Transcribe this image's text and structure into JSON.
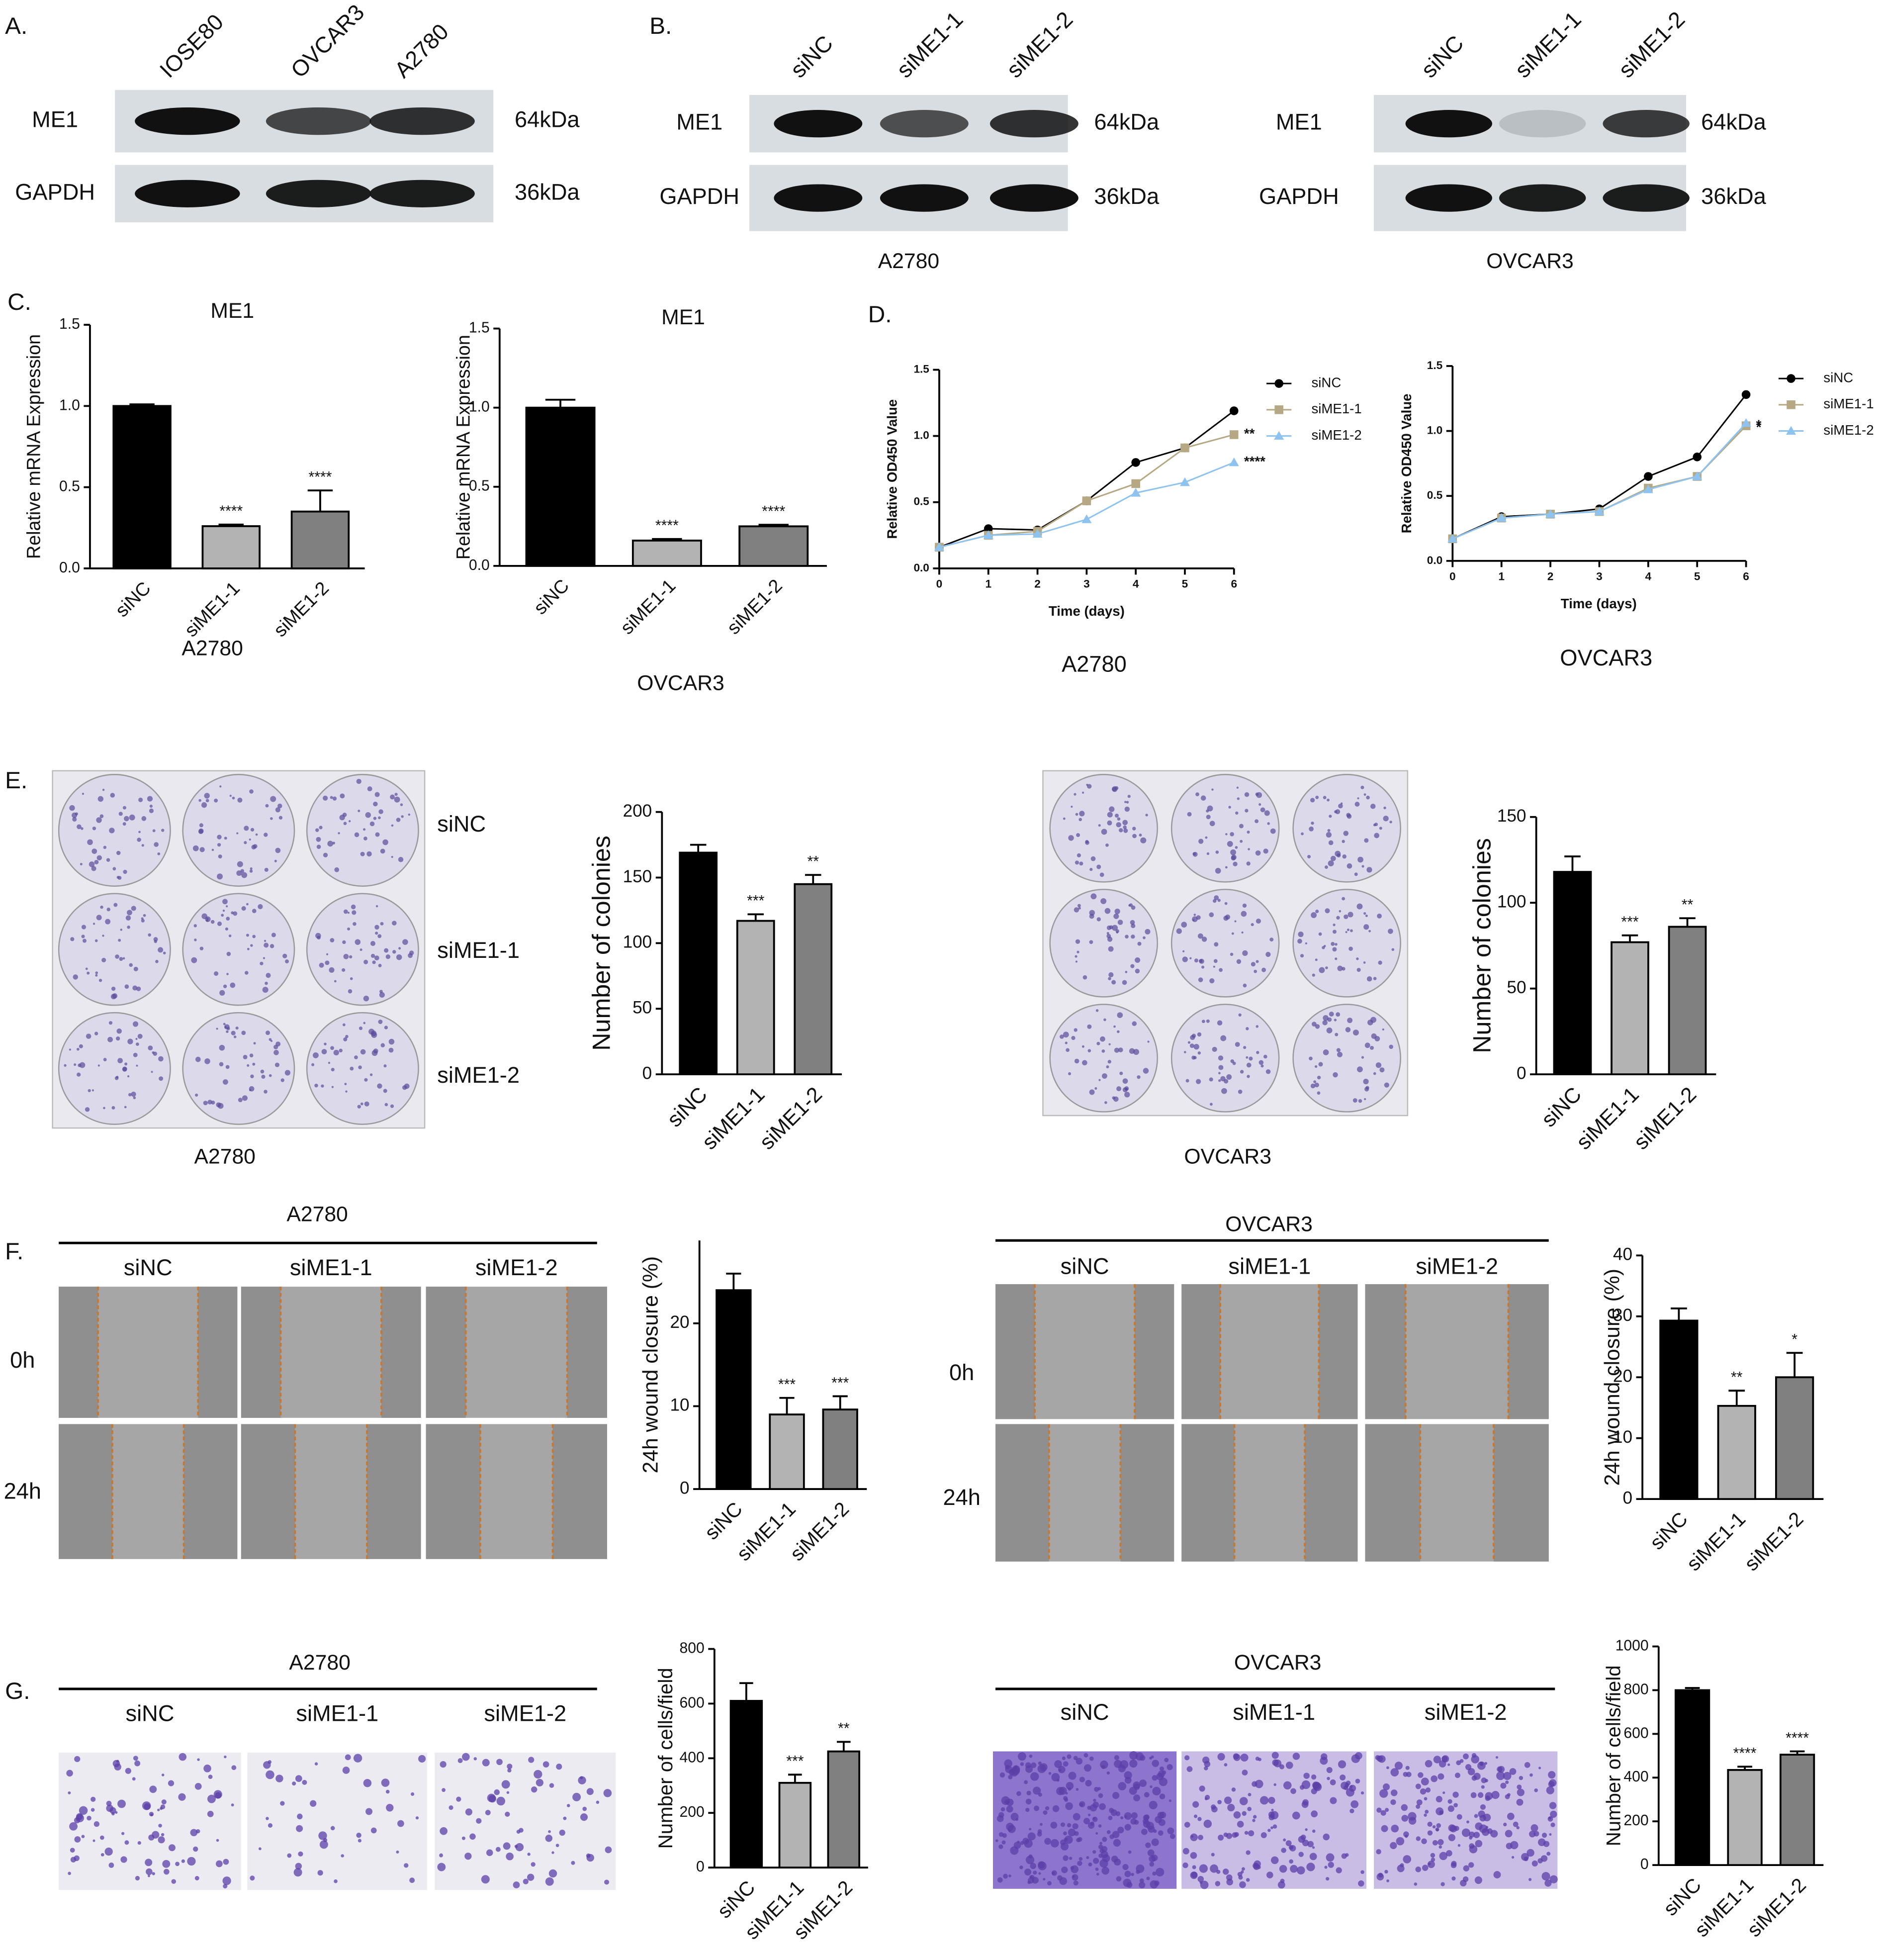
{
  "panel_labels": [
    "A.",
    "B.",
    "C.",
    "D.",
    "E.",
    "F.",
    "G."
  ],
  "blots": [
    {
      "lanes": [
        "IOSE80",
        "OVCAR3",
        "A2780"
      ],
      "rows": [
        {
          "protein": "ME1",
          "size": "64kDa"
        },
        {
          "protein": "GAPDH",
          "size": "36kDa"
        }
      ]
    },
    {
      "lanes": [
        "siNC",
        "siME1-1",
        "siME1-2"
      ],
      "rows": [
        {
          "protein": "ME1",
          "size": "64kDa"
        },
        {
          "protein": "GAPDH",
          "size": "36kDa"
        }
      ],
      "cell": "A2780"
    },
    {
      "lanes": [
        "siNC",
        "siME1-1",
        "siME1-2"
      ],
      "rows": [
        {
          "protein": "ME1",
          "size": "64kDa"
        },
        {
          "protein": "GAPDH",
          "size": "36kDa"
        }
      ],
      "cell": "OVCAR3"
    }
  ],
  "colony_plates": [
    {
      "rows": [
        "siNC",
        "siME1-1",
        "siME1-2"
      ],
      "cell": "A2780"
    },
    {
      "cell": "OVCAR3"
    }
  ],
  "wound_images": [
    {
      "title": "A2780",
      "columns": [
        "siNC",
        "siME1-1",
        "siME1-2"
      ],
      "rows": [
        "0h",
        "24h"
      ]
    },
    {
      "title": "OVCAR3",
      "columns": [
        "siNC",
        "siME1-1",
        "siME1-2"
      ],
      "rows": [
        "0h",
        "24h"
      ]
    }
  ],
  "transwell_images": [
    {
      "title": "A2780",
      "columns": [
        "siNC",
        "siME1-1",
        "siME1-2"
      ]
    },
    {
      "title": "OVCAR3",
      "columns": [
        "siNC",
        "siME1-1",
        "siME1-2"
      ]
    }
  ],
  "chart_data": [
    {
      "type": "bar",
      "title": "ME1",
      "x_label": "A2780",
      "y_label": "Relative mRNA Expression",
      "categories": [
        "siNC",
        "siME1-1",
        "siME1-2"
      ],
      "values": [
        1.0,
        0.26,
        0.35
      ],
      "errors": [
        0.01,
        0.01,
        0.13
      ],
      "significance": [
        null,
        "****",
        "****"
      ],
      "colors": [
        "#000000",
        "#b3b3b3",
        "#808080"
      ],
      "ylim": [
        0,
        1.5
      ],
      "yticks": [
        {
          "value": 0,
          "label": "0.0"
        },
        0.5,
        {
          "value": 1,
          "label": "1.0"
        },
        1.5
      ]
    },
    {
      "type": "bar",
      "title": "ME1",
      "x_label": "OVCAR3",
      "y_label": "Relative mRNA Expression",
      "categories": [
        "siNC",
        "siME1-1",
        "siME1-2"
      ],
      "values": [
        1.0,
        0.16,
        0.25
      ],
      "errors": [
        0.05,
        0.01,
        0.01
      ],
      "significance": [
        null,
        "****",
        "****"
      ],
      "colors": [
        "#000000",
        "#b3b3b3",
        "#808080"
      ],
      "ylim": [
        0,
        1.5
      ],
      "yticks": [
        {
          "value": 0,
          "label": "0.0"
        },
        0.5,
        {
          "value": 1,
          "label": "1.0"
        },
        1.5
      ]
    },
    {
      "type": "line",
      "caption": "A2780",
      "x_label": "Time (days)",
      "y_label": "Relative OD450 Value",
      "x": [
        0,
        1,
        2,
        3,
        4,
        5,
        6
      ],
      "xlim": [
        0,
        6
      ],
      "xticks": [
        0,
        1,
        2,
        3,
        4,
        5,
        6
      ],
      "ylim": [
        0,
        1.5
      ],
      "yticks": [
        {
          "value": 0,
          "label": "0.0"
        },
        0.5,
        {
          "value": 1,
          "label": "1.0"
        },
        1.5
      ],
      "legend": "upper-right",
      "series": [
        {
          "name": "siNC",
          "color": "#000000",
          "marker": "circle",
          "values": [
            0.16,
            0.3,
            0.29,
            0.51,
            0.8,
            0.91,
            1.19
          ]
        },
        {
          "name": "siME1-1",
          "color": "#b5a882",
          "marker": "square",
          "values": [
            0.16,
            0.25,
            0.28,
            0.51,
            0.64,
            0.91,
            1.01
          ],
          "end_label": "**"
        },
        {
          "name": "siME1-2",
          "color": "#8ec3f0",
          "marker": "triangle",
          "values": [
            0.16,
            0.25,
            0.26,
            0.37,
            0.57,
            0.65,
            0.8
          ],
          "end_label": "****"
        }
      ]
    },
    {
      "type": "line",
      "caption": "OVCAR3",
      "x_label": "Time (days)",
      "y_label": "Relative OD450 Value",
      "x": [
        0,
        1,
        2,
        3,
        4,
        5,
        6
      ],
      "xlim": [
        0,
        6
      ],
      "xticks": [
        0,
        1,
        2,
        3,
        4,
        5,
        6
      ],
      "ylim": [
        0,
        1.5
      ],
      "yticks": [
        {
          "value": 0,
          "label": "0.0"
        },
        0.5,
        {
          "value": 1,
          "label": "1.0"
        },
        1.5
      ],
      "legend": "upper-right",
      "series": [
        {
          "name": "siNC",
          "color": "#000000",
          "marker": "circle",
          "values": [
            0.17,
            0.34,
            0.36,
            0.4,
            0.65,
            0.8,
            1.28
          ]
        },
        {
          "name": "siME1-1",
          "color": "#b5a882",
          "marker": "square",
          "values": [
            0.17,
            0.33,
            0.36,
            0.38,
            0.56,
            0.65,
            1.04
          ],
          "end_label": "*"
        },
        {
          "name": "siME1-2",
          "color": "#8ec3f0",
          "marker": "triangle",
          "values": [
            0.17,
            0.33,
            0.36,
            0.38,
            0.55,
            0.65,
            1.06
          ],
          "end_label": "*"
        }
      ]
    },
    {
      "type": "bar",
      "y_label": "Number of colonies",
      "categories": [
        "siNC",
        "siME1-1",
        "siME1-2"
      ],
      "values": [
        169,
        117,
        145
      ],
      "errors": [
        6,
        5,
        7
      ],
      "significance": [
        null,
        "***",
        "**"
      ],
      "colors": [
        "#000000",
        "#b3b3b3",
        "#808080"
      ],
      "ylim": [
        0,
        200
      ],
      "yticks": [
        0,
        50,
        100,
        150,
        200
      ]
    },
    {
      "type": "bar",
      "y_label": "Number of colonies",
      "categories": [
        "siNC",
        "siME1-1",
        "siME1-2"
      ],
      "values": [
        118,
        77,
        86
      ],
      "errors": [
        9,
        4,
        5
      ],
      "significance": [
        null,
        "***",
        "**"
      ],
      "colors": [
        "#000000",
        "#b3b3b3",
        "#808080"
      ],
      "ylim": [
        0,
        150
      ],
      "yticks": [
        0,
        50,
        100,
        150
      ]
    },
    {
      "type": "bar",
      "y_label": "24h wound closure (%)",
      "categories": [
        "siNC",
        "siME1-1",
        "siME1-2"
      ],
      "values": [
        24,
        9,
        9.6
      ],
      "errors": [
        2,
        2,
        1.6
      ],
      "significance": [
        null,
        "***",
        "***"
      ],
      "colors": [
        "#000000",
        "#b3b3b3",
        "#808080"
      ],
      "ylim": [
        0,
        30
      ],
      "yticks": [
        0,
        10,
        20
      ]
    },
    {
      "type": "bar",
      "y_label": "24h wound closure (%)",
      "categories": [
        "siNC",
        "siME1-1",
        "siME1-2"
      ],
      "values": [
        29.3,
        15.3,
        20
      ],
      "errors": [
        2,
        2.5,
        4
      ],
      "significance": [
        null,
        "**",
        "*"
      ],
      "colors": [
        "#000000",
        "#b3b3b3",
        "#808080"
      ],
      "ylim": [
        0,
        40
      ],
      "yticks": [
        0,
        10,
        20,
        30,
        40
      ]
    },
    {
      "type": "bar",
      "y_label": "Number of cells/field",
      "categories": [
        "siNC",
        "siME1-1",
        "siME1-2"
      ],
      "values": [
        610,
        310,
        425
      ],
      "errors": [
        65,
        30,
        35
      ],
      "significance": [
        null,
        "***",
        "**"
      ],
      "colors": [
        "#000000",
        "#b3b3b3",
        "#808080"
      ],
      "ylim": [
        0,
        800
      ],
      "yticks": [
        0,
        200,
        400,
        600,
        800
      ]
    },
    {
      "type": "bar",
      "y_label": "Number of cells/field",
      "categories": [
        "siNC",
        "siME1-1",
        "siME1-2"
      ],
      "values": [
        800,
        435,
        505
      ],
      "errors": [
        10,
        15,
        15
      ],
      "significance": [
        null,
        "****",
        "****"
      ],
      "colors": [
        "#000000",
        "#b3b3b3",
        "#808080"
      ],
      "ylim": [
        0,
        1000
      ],
      "yticks": [
        0,
        200,
        400,
        600,
        800,
        1000
      ]
    }
  ]
}
